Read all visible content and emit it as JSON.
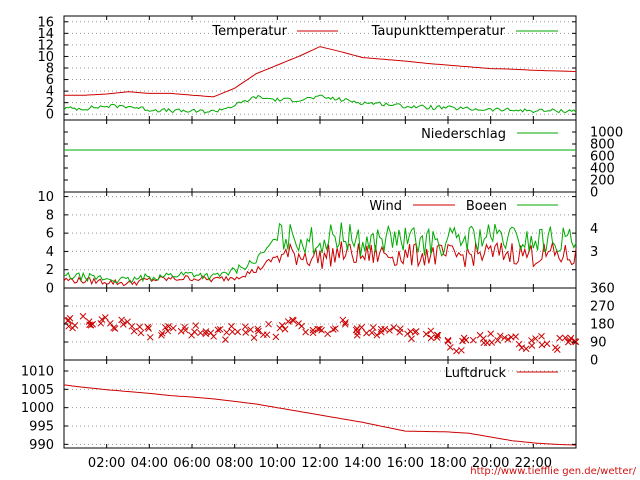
{
  "credit": "http://www.tiefflie gen.de/wetter/",
  "time_labels": [
    "02:00",
    "04:00",
    "06:00",
    "08:00",
    "10:00",
    "12:00",
    "14:00",
    "16:00",
    "18:00",
    "20:00",
    "22:00"
  ],
  "chart_data": [
    {
      "type": "line",
      "panel": "temperature",
      "ylim": [
        -1,
        17
      ],
      "yticks": [
        "16",
        "14",
        "12",
        "10",
        "8",
        "6",
        "4",
        "2",
        "0"
      ],
      "grid": true,
      "legend": "top-right",
      "x": [
        0,
        1,
        2,
        3,
        4,
        5,
        6,
        7,
        8,
        9,
        10,
        11,
        12,
        13,
        14,
        15,
        16,
        17,
        18,
        19,
        20,
        21,
        22,
        23,
        24
      ],
      "series": [
        {
          "name": "Temperatur",
          "color": "#cc0000",
          "values": [
            3.3,
            3.3,
            3.5,
            3.9,
            3.6,
            3.6,
            3.3,
            3.0,
            4.5,
            7.0,
            8.5,
            10.0,
            11.7,
            10.8,
            9.8,
            9.5,
            9.2,
            8.8,
            8.5,
            8.2,
            7.9,
            7.8,
            7.6,
            7.5,
            7.4
          ]
        },
        {
          "name": "Taupunkttemperatur",
          "color": "#00aa00",
          "values": [
            1.0,
            1.0,
            1.4,
            1.4,
            0.8,
            0.6,
            0.5,
            0.5,
            1.5,
            3.0,
            2.5,
            2.5,
            3.0,
            2.5,
            2.0,
            1.8,
            1.4,
            1.2,
            1.1,
            0.9,
            0.8,
            0.7,
            0.6,
            0.6,
            0.6
          ]
        }
      ]
    },
    {
      "type": "line",
      "panel": "precipitation",
      "ylim": [
        0,
        1200
      ],
      "yticks": [
        "1000",
        "800",
        "600",
        "400",
        "200",
        "0"
      ],
      "legend": "top-right",
      "x": [
        0,
        24
      ],
      "series": [
        {
          "name": "Niederschlag",
          "color": "#00aa00",
          "values": [
            700,
            700
          ]
        }
      ]
    },
    {
      "type": "line",
      "panel": "wind",
      "ylim": [
        0,
        10.5
      ],
      "yticks": [
        "10",
        "8",
        "6",
        "4",
        "2",
        "0"
      ],
      "right_ticks": [
        "4",
        "3"
      ],
      "grid": true,
      "legend": "top-right",
      "x": [
        0,
        1,
        2,
        3,
        4,
        5,
        6,
        7,
        8,
        9,
        10,
        11,
        12,
        13,
        14,
        15,
        16,
        17,
        18,
        19,
        20,
        21,
        22,
        23,
        24
      ],
      "series": [
        {
          "name": "Wind",
          "color": "#cc0000",
          "values": [
            0.9,
            0.8,
            0.7,
            0.5,
            0.9,
            1.0,
            1.1,
            0.9,
            1.2,
            1.9,
            3.5,
            3.7,
            3.3,
            3.9,
            3.5,
            3.8,
            3.5,
            3.7,
            3.5,
            3.6,
            3.8,
            3.9,
            3.6,
            3.7,
            3.3
          ]
        },
        {
          "name": "Boeen",
          "color": "#00aa00",
          "values": [
            1.3,
            1.2,
            1.0,
            0.8,
            1.2,
            1.4,
            1.6,
            1.2,
            1.9,
            3.0,
            5.5,
            5.5,
            5.0,
            5.8,
            4.9,
            5.4,
            5.2,
            5.0,
            5.1,
            5.5,
            5.6,
            5.4,
            5.1,
            5.4,
            5.0
          ]
        }
      ]
    },
    {
      "type": "scatter",
      "panel": "wind_direction",
      "ylim": [
        0,
        360
      ],
      "yticks": [
        "360",
        "270",
        "180",
        "90",
        "0"
      ],
      "grid": true,
      "color": "#cc0000",
      "x": [
        0,
        0.5,
        1,
        1.5,
        2,
        2.5,
        3,
        3.5,
        4,
        4.5,
        5,
        5.5,
        6,
        6.5,
        7,
        7.5,
        8,
        8.5,
        9,
        9.5,
        10,
        10.5,
        11,
        11.5,
        12,
        12.5,
        13,
        13.5,
        14,
        14.5,
        15,
        15.5,
        16,
        16.5,
        17,
        17.5,
        18,
        18.5,
        19,
        19.5,
        20,
        20.5,
        21,
        21.5,
        22,
        22.5,
        23,
        23.5,
        24
      ],
      "values": [
        180,
        185,
        200,
        190,
        185,
        180,
        175,
        140,
        140,
        145,
        140,
        140,
        145,
        135,
        140,
        130,
        150,
        160,
        140,
        150,
        145,
        175,
        180,
        150,
        140,
        160,
        175,
        150,
        140,
        150,
        160,
        150,
        140,
        130,
        120,
        110,
        80,
        70,
        90,
        100,
        110,
        100,
        90,
        80,
        90,
        100,
        80,
        90,
        100
      ]
    },
    {
      "type": "line",
      "panel": "pressure",
      "ylim": [
        989,
        1013
      ],
      "yticks": [
        "1010",
        "1005",
        "1000",
        "995",
        "990"
      ],
      "grid": true,
      "legend": "top-right",
      "x": [
        0,
        1,
        2,
        3,
        4,
        5,
        6,
        7,
        8,
        9,
        10,
        11,
        12,
        13,
        14,
        15,
        16,
        17,
        18,
        19,
        20,
        21,
        22,
        23,
        24
      ],
      "series": [
        {
          "name": "Luftdruck",
          "color": "#cc0000",
          "values": [
            1006.2,
            1005.5,
            1004.9,
            1004.4,
            1003.9,
            1003.3,
            1002.9,
            1002.4,
            1001.7,
            1001.0,
            1000.0,
            999.0,
            998.0,
            997.0,
            996.0,
            994.8,
            993.6,
            993.5,
            993.4,
            993.0,
            992.0,
            991.0,
            990.4,
            990.0,
            989.8
          ]
        }
      ]
    }
  ]
}
